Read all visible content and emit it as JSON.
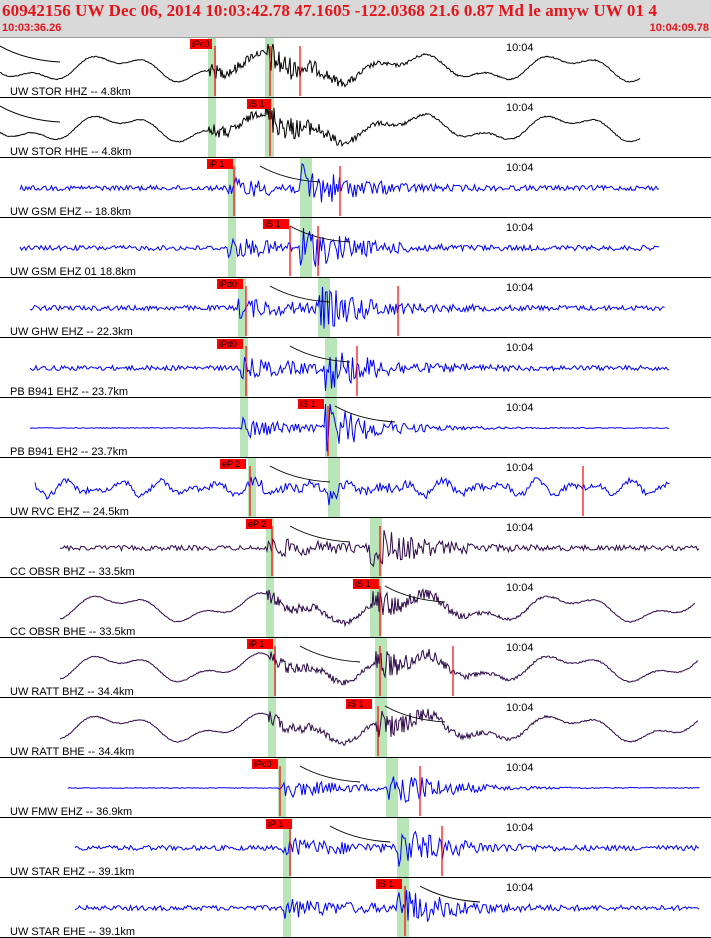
{
  "header": {
    "title": "60942156 UW Dec 06, 2014 10:03:42.78    47.1605 -122.0368 21.6 0.87 Md le amyw UW 01    4",
    "start_time": "10:03:36.26",
    "end_time": "10:04:09.78"
  },
  "tick_label": "10:04",
  "colors": {
    "header_text": "#e4141b",
    "header_bg": "#d9d9d9",
    "pick_box": "#ff0000",
    "pick_window": "#b8e6b8",
    "trace_black": "#000000",
    "trace_blue": "#0000ff",
    "trace_purple": "#2e0a4a",
    "fit_line": "#000000",
    "coda_line": "#cc0000"
  },
  "traces": [
    {
      "label": "UW STOR HHZ -- 4.8km",
      "pick": "iPc0",
      "color": "black",
      "style": "longperiod"
    },
    {
      "label": "UW STOR HHE -- 4.8km",
      "pick": "iS 1",
      "color": "black",
      "style": "longperiod"
    },
    {
      "label": "UW GSM EHZ -- 18.8km",
      "pick": "iP 1",
      "color": "blue",
      "style": "noise"
    },
    {
      "label": "UW GSM EHZ 01 18.8km",
      "pick": "iS 1",
      "color": "blue",
      "style": "noise"
    },
    {
      "label": "UW GHW EHZ -- 22.3km",
      "pick": "iPd0",
      "color": "blue",
      "style": "noise"
    },
    {
      "label": "PB B941 EHZ -- 23.7km",
      "pick": "iPd0",
      "color": "blue",
      "style": "noise"
    },
    {
      "label": "PB B941 EH2 -- 23.7km",
      "pick": "iS 1",
      "color": "blue",
      "style": "quiet"
    },
    {
      "label": "UW RVC EHZ -- 24.5km",
      "pick": "eP 2",
      "color": "blue",
      "style": "wavy"
    },
    {
      "label": "CC OBSR BHZ -- 33.5km",
      "pick": "eP 2",
      "color": "purple",
      "style": "noise"
    },
    {
      "label": "CC OBSR BHE -- 33.5km",
      "pick": "iS 1",
      "color": "purple",
      "style": "longperiod"
    },
    {
      "label": "UW RATT BHZ -- 34.4km",
      "pick": "iP 1",
      "color": "purple",
      "style": "longperiod"
    },
    {
      "label": "UW RATT BHE -- 34.4km",
      "pick": "iS 1",
      "color": "purple",
      "style": "longperiod"
    },
    {
      "label": "UW FMW EHZ -- 36.9km",
      "pick": "iPc0",
      "color": "blue",
      "style": "quiet"
    },
    {
      "label": "UW STAR EHZ -- 39.1km",
      "pick": "iP 1",
      "color": "blue",
      "style": "noise"
    },
    {
      "label": "UW STAR EHE -- 39.1km",
      "pick": "iS 1",
      "color": "blue",
      "style": "noise"
    }
  ]
}
